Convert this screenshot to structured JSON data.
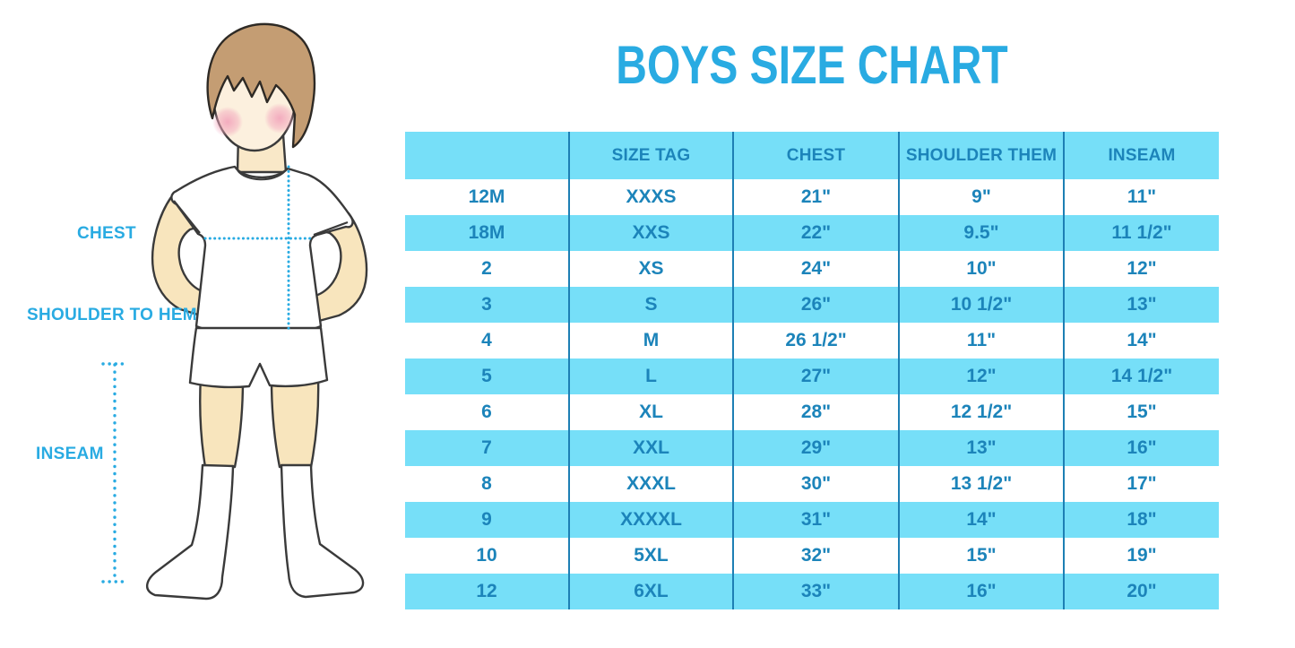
{
  "page": {
    "title": "BOYS SIZE CHART"
  },
  "figure": {
    "chest_label": "CHEST",
    "shoulder_to_hem_label": "SHOULDER TO HEM",
    "inseam_label": "INSEAM"
  },
  "table": {
    "headers": [
      "",
      "SIZE TAG",
      "CHEST",
      "SHOULDER THEM",
      "INSEAM"
    ],
    "rows": [
      [
        "12M",
        "XXXS",
        "21\"",
        "9\"",
        "11\""
      ],
      [
        "18M",
        "XXS",
        "22\"",
        "9.5\"",
        "11 1/2\""
      ],
      [
        "2",
        "XS",
        "24\"",
        "10\"",
        "12\""
      ],
      [
        "3",
        "S",
        "26\"",
        "10 1/2\"",
        "13\""
      ],
      [
        "4",
        "M",
        "26 1/2\"",
        "11\"",
        "14\""
      ],
      [
        "5",
        "L",
        "27\"",
        "12\"",
        "14 1/2\""
      ],
      [
        "6",
        "XL",
        "28\"",
        "12 1/2\"",
        "15\""
      ],
      [
        "7",
        "XXL",
        "29\"",
        "13\"",
        "16\""
      ],
      [
        "8",
        "XXXL",
        "30\"",
        "13 1/2\"",
        "17\""
      ],
      [
        "9",
        "XXXXL",
        "31\"",
        "14\"",
        "18\""
      ],
      [
        "10",
        "5XL",
        "32\"",
        "15\"",
        "19\""
      ],
      [
        "12",
        "6XL",
        "33\"",
        "16\"",
        "20\""
      ]
    ]
  },
  "colors": {
    "accent_blue": "#29ABE2",
    "row_blue": "#76DFF8",
    "table_text_blue": "#1C84BA",
    "grid_line_blue": "#1D7FB4",
    "skin": "#F8E5BD",
    "face": "#FCF0DE",
    "hair": "#C49D73"
  },
  "chart_data": {
    "type": "table",
    "title": "BOYS SIZE CHART",
    "columns": [
      "",
      "SIZE TAG",
      "CHEST",
      "SHOULDER THEM",
      "INSEAM"
    ],
    "rows": [
      [
        "12M",
        "XXXS",
        "21\"",
        "9\"",
        "11\""
      ],
      [
        "18M",
        "XXS",
        "22\"",
        "9.5\"",
        "11 1/2\""
      ],
      [
        "2",
        "XS",
        "24\"",
        "10\"",
        "12\""
      ],
      [
        "3",
        "S",
        "26\"",
        "10 1/2\"",
        "13\""
      ],
      [
        "4",
        "M",
        "26 1/2\"",
        "11\"",
        "14\""
      ],
      [
        "5",
        "L",
        "27\"",
        "12\"",
        "14 1/2\""
      ],
      [
        "6",
        "XL",
        "28\"",
        "12 1/2\"",
        "15\""
      ],
      [
        "7",
        "XXL",
        "29\"",
        "13\"",
        "16\""
      ],
      [
        "8",
        "XXXL",
        "30\"",
        "13 1/2\"",
        "17\""
      ],
      [
        "9",
        "XXXXL",
        "31\"",
        "14\"",
        "18\""
      ],
      [
        "10",
        "5XL",
        "32\"",
        "15\"",
        "19\""
      ],
      [
        "12",
        "6XL",
        "33\"",
        "16\"",
        "20\""
      ]
    ],
    "notes": "Alternating white/light-blue striped rows; measurement illustration of boy at left with CHEST, SHOULDER TO HEM and INSEAM guides"
  }
}
